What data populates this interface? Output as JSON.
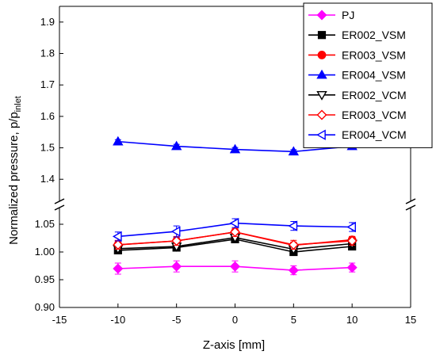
{
  "chart_data": {
    "type": "line",
    "xlabel": "Z-axis [mm]",
    "ylabel": "Normalized pressure, p/p",
    "ylabel_subscript": "inlet",
    "xlim": [
      -15,
      15
    ],
    "x_ticks": [
      "-15",
      "-10",
      "-5",
      "0",
      "5",
      "10",
      "15"
    ],
    "y_axis_break": true,
    "y_lower_range": [
      0.9,
      1.08
    ],
    "y_upper_range": [
      1.33,
      1.95
    ],
    "y_ticks_lower": [
      "0.90",
      "0.95",
      "1.00",
      "1.05"
    ],
    "y_ticks_upper": [
      "1.4",
      "1.5",
      "1.6",
      "1.7",
      "1.8",
      "1.9"
    ],
    "legend_position": "top-right",
    "x": [
      -10,
      -5,
      0,
      5,
      10
    ],
    "series": [
      {
        "name": "PJ",
        "values": [
          0.97,
          0.974,
          0.974,
          0.967,
          0.972
        ],
        "err": [
          0.01,
          0.01,
          0.01,
          0.008,
          0.008
        ],
        "color": "#ff00ff",
        "marker": "diamond-filled"
      },
      {
        "name": "ER002_VSM",
        "values": [
          1.003,
          1.008,
          1.023,
          1.0,
          1.01
        ],
        "err": [
          0.006,
          0.006,
          0.006,
          0.006,
          0.006
        ],
        "color": "#000000",
        "marker": "square-filled"
      },
      {
        "name": "ER003_VSM",
        "values": [
          1.013,
          1.02,
          1.036,
          1.012,
          1.022
        ],
        "err": [
          0.006,
          0.006,
          0.006,
          0.006,
          0.006
        ],
        "color": "#ff0000",
        "marker": "circle-filled"
      },
      {
        "name": "ER004_VSM",
        "values": [
          1.52,
          1.505,
          1.495,
          1.488,
          1.505
        ],
        "err": [
          0.006,
          0.006,
          0.006,
          0.006,
          0.006
        ],
        "color": "#0000ff",
        "marker": "triangle-up-filled"
      },
      {
        "name": "ER002_VCM",
        "values": [
          1.006,
          1.01,
          1.026,
          1.005,
          1.015
        ],
        "err": [
          0.006,
          0.006,
          0.006,
          0.006,
          0.006
        ],
        "color": "#000000",
        "marker": "triangle-down-open"
      },
      {
        "name": "ER003_VCM",
        "values": [
          1.013,
          1.02,
          1.036,
          1.013,
          1.02
        ],
        "err": [
          0.008,
          0.008,
          0.008,
          0.008,
          0.008
        ],
        "color": "#ff0000",
        "marker": "diamond-open"
      },
      {
        "name": "ER004_VCM",
        "values": [
          1.028,
          1.037,
          1.052,
          1.047,
          1.045
        ],
        "err": [
          0.008,
          0.01,
          0.008,
          0.008,
          0.008
        ],
        "color": "#0000ff",
        "marker": "triangle-left-open"
      }
    ]
  }
}
